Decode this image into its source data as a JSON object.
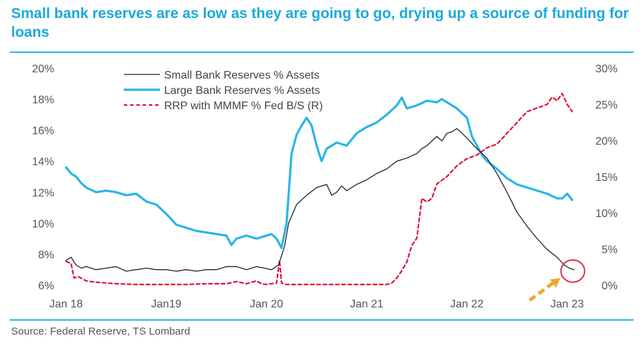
{
  "header": {
    "title": "Small bank reserves are as low as they are going to go, drying up a source of funding for loans"
  },
  "footer": {
    "source": "Source: Federal Reserve, TS Lombard"
  },
  "colors": {
    "title": "#1aa9dd",
    "rule": "#29b5e8",
    "small_bank": "#222222",
    "large_bank": "#29b5e8",
    "rrp": "#e0113a",
    "highlight_circle": "#d9334a",
    "arrow": "#f0a830"
  },
  "chart_data": {
    "type": "line",
    "title": "Small bank reserves are as low as they are going to go, drying up a source of funding for loans",
    "x_tick_labels": [
      "Jan 18",
      "Jan19",
      "Jan 20",
      "Jan 21",
      "Jan 22",
      "Jan 23"
    ],
    "xlim": [
      2018.0,
      2023.15
    ],
    "y_left": {
      "ylim": [
        6,
        20
      ],
      "tick_labels": [
        "6%",
        "8%",
        "10%",
        "12%",
        "14%",
        "16%",
        "18%",
        "20%"
      ]
    },
    "y_right": {
      "ylim": [
        0,
        30
      ],
      "tick_labels": [
        "0%",
        "5%",
        "10%",
        "15%",
        "20%",
        "25%",
        "30%"
      ]
    },
    "legend": {
      "placement": "top-left"
    },
    "grid": false,
    "annotations": [
      "circle around latest small bank reserves value",
      "arrow pointing to circle"
    ],
    "series": [
      {
        "name": "Small Bank Reserves % Assets",
        "axis": "left",
        "style": "solid-thin",
        "x": [
          2018.0,
          2018.05,
          2018.1,
          2018.15,
          2018.2,
          2018.3,
          2018.4,
          2018.5,
          2018.6,
          2018.7,
          2018.8,
          2018.9,
          2019.0,
          2019.1,
          2019.2,
          2019.3,
          2019.4,
          2019.5,
          2019.6,
          2019.7,
          2019.8,
          2019.9,
          2019.98,
          2020.05,
          2020.12,
          2020.18,
          2020.22,
          2020.26,
          2020.3,
          2020.35,
          2020.4,
          2020.5,
          2020.6,
          2020.65,
          2020.7,
          2020.75,
          2020.8,
          2020.9,
          2021.0,
          2021.1,
          2021.2,
          2021.3,
          2021.4,
          2021.5,
          2021.55,
          2021.6,
          2021.7,
          2021.75,
          2021.8,
          2021.85,
          2021.9,
          2022.0,
          2022.1,
          2022.2,
          2022.3,
          2022.4,
          2022.5,
          2022.6,
          2022.7,
          2022.8,
          2022.9,
          2022.97,
          2023.02,
          2023.07
        ],
        "values": [
          7.6,
          7.8,
          7.3,
          7.1,
          7.2,
          7.0,
          7.1,
          7.2,
          6.9,
          7.0,
          7.1,
          7.0,
          7.0,
          6.9,
          7.0,
          6.9,
          7.0,
          7.0,
          7.2,
          7.2,
          7.0,
          7.2,
          7.1,
          7.0,
          7.3,
          8.5,
          10.0,
          10.6,
          11.2,
          11.5,
          11.8,
          12.3,
          12.5,
          11.8,
          12.0,
          12.4,
          12.1,
          12.5,
          12.8,
          13.2,
          13.5,
          14.0,
          14.2,
          14.5,
          14.8,
          15.0,
          15.6,
          15.3,
          15.8,
          15.9,
          16.1,
          15.5,
          14.8,
          14.2,
          13.2,
          12.0,
          10.7,
          9.8,
          9.0,
          8.3,
          7.8,
          7.3,
          7.1,
          7.0
        ]
      },
      {
        "name": "Large Bank Reserves % Assets",
        "axis": "left",
        "style": "solid-thick",
        "x": [
          2018.0,
          2018.05,
          2018.1,
          2018.15,
          2018.2,
          2018.3,
          2018.4,
          2018.5,
          2018.6,
          2018.7,
          2018.8,
          2018.9,
          2019.0,
          2019.1,
          2019.2,
          2019.3,
          2019.4,
          2019.5,
          2019.6,
          2019.65,
          2019.7,
          2019.8,
          2019.9,
          2020.0,
          2020.05,
          2020.1,
          2020.15,
          2020.2,
          2020.25,
          2020.3,
          2020.35,
          2020.4,
          2020.45,
          2020.5,
          2020.55,
          2020.6,
          2020.7,
          2020.8,
          2020.9,
          2021.0,
          2021.1,
          2021.2,
          2021.3,
          2021.35,
          2021.4,
          2021.5,
          2021.6,
          2021.7,
          2021.75,
          2021.8,
          2021.9,
          2022.0,
          2022.05,
          2022.1,
          2022.15,
          2022.2,
          2022.3,
          2022.4,
          2022.5,
          2022.6,
          2022.7,
          2022.8,
          2022.9,
          2022.95,
          2023.0,
          2023.05
        ],
        "values": [
          13.6,
          13.2,
          13.0,
          12.6,
          12.3,
          12.0,
          12.1,
          12.0,
          11.8,
          11.9,
          11.4,
          11.2,
          10.6,
          9.9,
          9.7,
          9.5,
          9.4,
          9.3,
          9.2,
          8.6,
          9.0,
          9.2,
          9.0,
          9.2,
          9.3,
          9.0,
          8.4,
          10.0,
          14.5,
          15.7,
          16.3,
          16.8,
          16.3,
          15.0,
          14.0,
          14.8,
          15.2,
          15.0,
          15.8,
          16.2,
          16.5,
          17.0,
          17.6,
          18.1,
          17.4,
          17.6,
          17.9,
          17.8,
          18.0,
          17.8,
          17.4,
          16.8,
          15.6,
          15.0,
          14.4,
          14.0,
          13.5,
          12.9,
          12.5,
          12.3,
          12.1,
          11.9,
          11.6,
          11.6,
          11.9,
          11.5
        ]
      },
      {
        "name": "RRP with MMMF % Fed B/S (R)",
        "axis": "right",
        "style": "dashed",
        "x": [
          2018.0,
          2018.05,
          2018.08,
          2018.12,
          2018.2,
          2018.3,
          2018.5,
          2018.7,
          2018.9,
          2019.0,
          2019.2,
          2019.4,
          2019.6,
          2019.7,
          2019.8,
          2019.9,
          2019.95,
          2020.0,
          2020.05,
          2020.1,
          2020.13,
          2020.15,
          2020.2,
          2020.4,
          2020.6,
          2020.8,
          2021.0,
          2021.1,
          2021.2,
          2021.25,
          2021.3,
          2021.35,
          2021.4,
          2021.45,
          2021.5,
          2021.55,
          2021.6,
          2021.65,
          2021.7,
          2021.8,
          2021.9,
          2022.0,
          2022.1,
          2022.2,
          2022.3,
          2022.4,
          2022.5,
          2022.6,
          2022.7,
          2022.8,
          2022.85,
          2022.9,
          2022.95,
          2023.0,
          2023.05
        ],
        "values": [
          3.3,
          3.0,
          1.0,
          1.2,
          0.6,
          0.4,
          0.2,
          0.1,
          0.1,
          0.1,
          0.1,
          0.2,
          0.2,
          0.5,
          0.2,
          0.6,
          0.2,
          0.1,
          0.2,
          0.3,
          3.4,
          0.3,
          0.1,
          0.1,
          0.1,
          0.1,
          0.1,
          0.1,
          0.1,
          0.3,
          1.0,
          2.0,
          3.2,
          5.5,
          6.5,
          12.0,
          11.5,
          12.0,
          14.0,
          15.0,
          16.5,
          17.5,
          18.0,
          19.0,
          19.5,
          21.0,
          22.5,
          24.0,
          24.5,
          25.0,
          26.0,
          25.5,
          26.5,
          25.0,
          24.0
        ]
      }
    ]
  }
}
